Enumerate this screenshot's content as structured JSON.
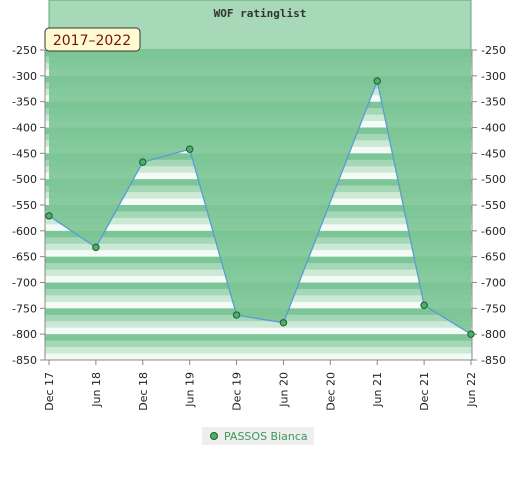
{
  "chart_data": {
    "type": "area",
    "title": "WOF ratinglist",
    "period_badge": "2017–2022",
    "x": [
      "Dec 17",
      "Jun 18",
      "Dec 18",
      "Jun 19",
      "Dec 19",
      "Jun 20",
      "Dec 20",
      "Jun 21",
      "Dec 21",
      "Jun 22"
    ],
    "x_tick_labels": [
      "Dec 17",
      "Jun 18",
      "Dec 18",
      "Jun 19",
      "Dec 19",
      "Jun 20",
      "Dec 20",
      "Jun 21",
      "Dec 21",
      "Jun 22"
    ],
    "y_tick_labels": [
      "-250",
      "-300",
      "-350",
      "-400",
      "-450",
      "-500",
      "-550",
      "-600",
      "-650",
      "-700",
      "-750",
      "-800",
      "-850"
    ],
    "ylim": [
      -850,
      -250
    ],
    "y_axis_both_sides": true,
    "grid": false,
    "legend_position": "bottom-center",
    "series": [
      {
        "name": "PASSOS Bianca",
        "points": [
          {
            "x": "Dec 17",
            "y": -571
          },
          {
            "x": "Jun 18",
            "y": -632
          },
          {
            "x": "Dec 18",
            "y": -467
          },
          {
            "x": "Jun 19",
            "y": -442
          },
          {
            "x": "Dec 19",
            "y": -763
          },
          {
            "x": "Jun 20",
            "y": -778
          },
          {
            "x": "Jun 21",
            "y": -310
          },
          {
            "x": "Dec 21",
            "y": -744
          },
          {
            "x": "Jun 22",
            "y": -800
          }
        ]
      }
    ],
    "colors": {
      "fill": "#7cc596",
      "line": "#5b9bd5",
      "marker": "#4caf6a",
      "marker_stroke": "#1f5a30",
      "band_dark": "#7cc596",
      "band_light": "#f4fbf6",
      "header": "#a7d8b8"
    }
  }
}
